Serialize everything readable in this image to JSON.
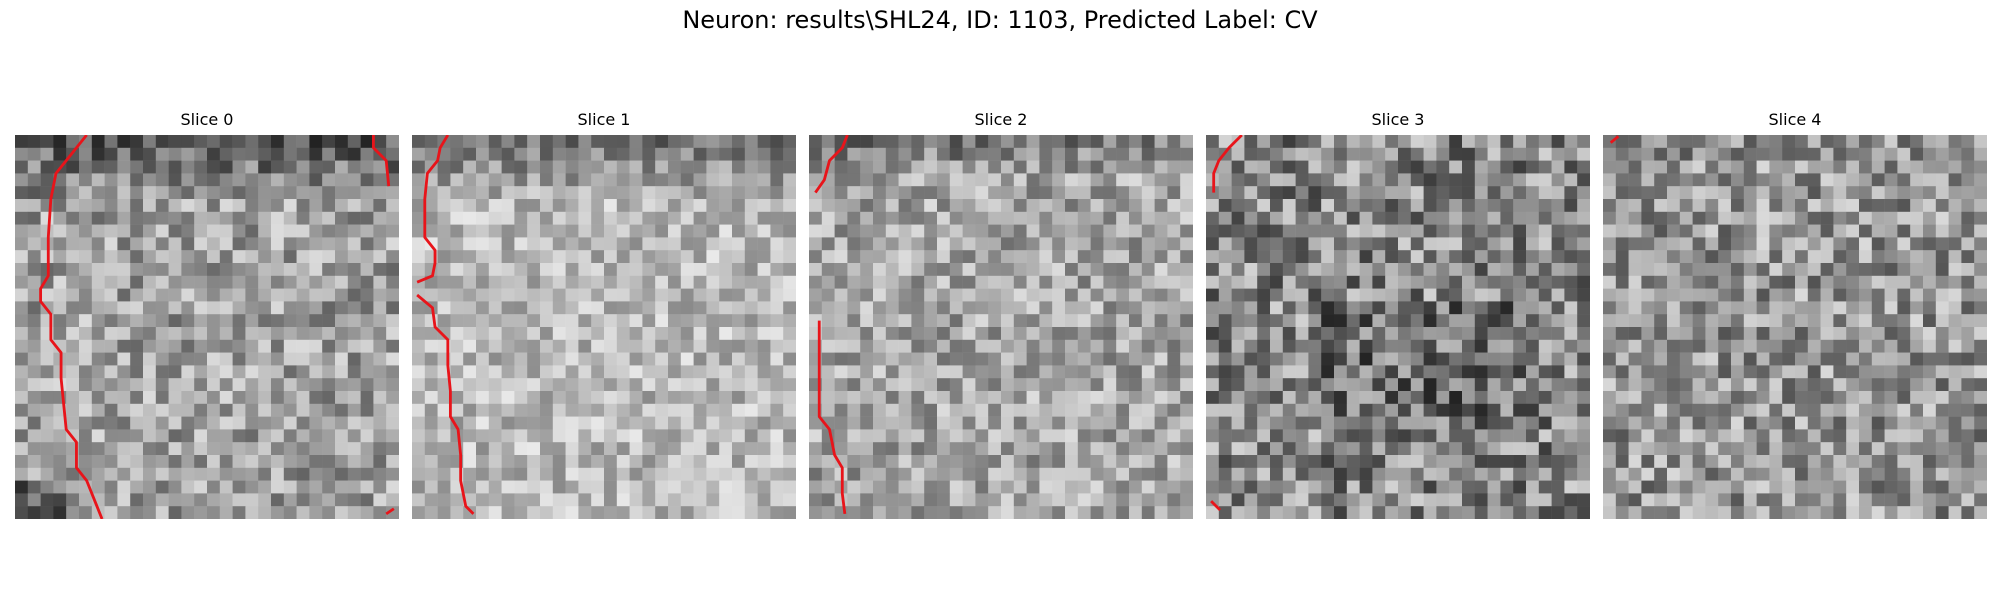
{
  "figure": {
    "title": "Neuron: results\\SHL24, ID: 1103, Predicted Label: CV"
  },
  "panels": [
    {
      "title": "Slice 0",
      "seed": 11,
      "mean": 160,
      "spread": 75
    },
    {
      "title": "Slice 1",
      "seed": 23,
      "mean": 185,
      "spread": 60
    },
    {
      "title": "Slice 2",
      "seed": 37,
      "mean": 165,
      "spread": 70
    },
    {
      "title": "Slice 3",
      "seed": 41,
      "mean": 135,
      "spread": 95
    },
    {
      "title": "Slice 4",
      "seed": 53,
      "mean": 150,
      "spread": 85
    }
  ],
  "contour_color": "#e8141a"
}
